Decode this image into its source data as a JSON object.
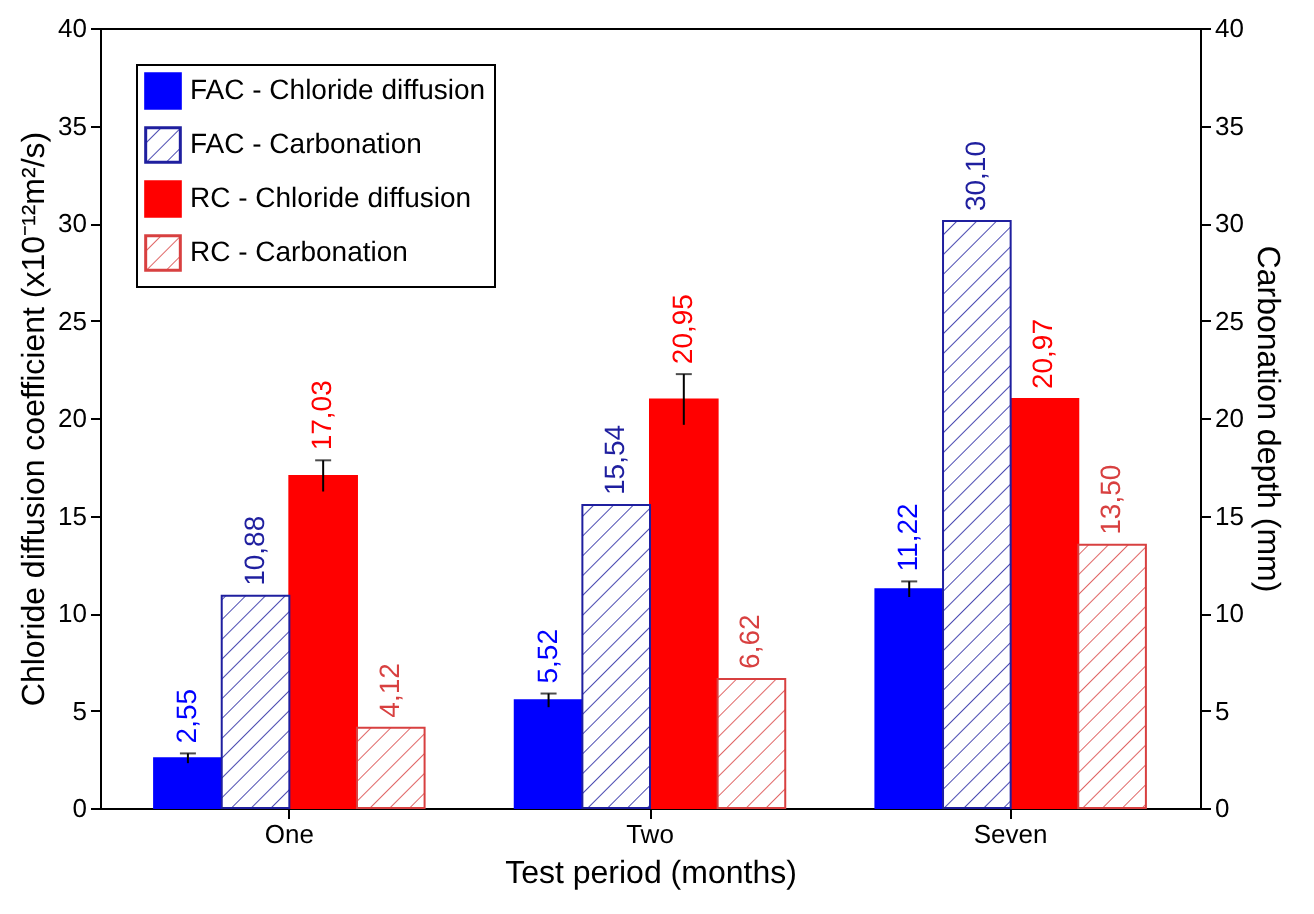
{
  "chart_data": {
    "type": "bar",
    "xlabel": "Test period (months)",
    "ylabel": "Chloride diffusion coefficient (x10⁻¹²m²/s)",
    "y2label": "Carbonation depth (mm)",
    "categories": [
      "One",
      "Two",
      "Seven"
    ],
    "series": [
      {
        "name": "FAC - Chloride diffusion",
        "color": "#0000ff",
        "values": [
          2.55,
          5.52,
          11.22
        ],
        "errors": [
          0.25,
          0.35,
          0.4
        ],
        "value_labels": [
          "2,55",
          "5,52",
          "11,22"
        ]
      },
      {
        "name": "FAC - Carbonation",
        "color": "#1f1f9f",
        "axis": "y2",
        "values": [
          10.88,
          15.54,
          30.1
        ],
        "value_labels": [
          "10,88",
          "15,54",
          "30,10"
        ]
      },
      {
        "name": "RC - Chloride diffusion",
        "color": "#ff0000",
        "values": [
          17.03,
          20.95,
          20.97
        ],
        "errors": [
          0.8,
          1.3,
          null
        ],
        "value_labels": [
          "17,03",
          "20,95",
          "20,97"
        ]
      },
      {
        "name": "RC - Carbonation",
        "color": "#d84040",
        "axis": "y2",
        "values": [
          4.12,
          6.62,
          13.5
        ],
        "value_labels": [
          "4,12",
          "6,62",
          "13,50"
        ]
      }
    ],
    "ylim": [
      0,
      40
    ],
    "yticks": [
      0,
      5,
      10,
      15,
      20,
      25,
      30,
      35,
      40
    ],
    "y2lim": [
      0,
      40
    ],
    "y2ticks": [
      0,
      5,
      10,
      15,
      20,
      25,
      30,
      35,
      40
    ],
    "legend": "top left"
  }
}
